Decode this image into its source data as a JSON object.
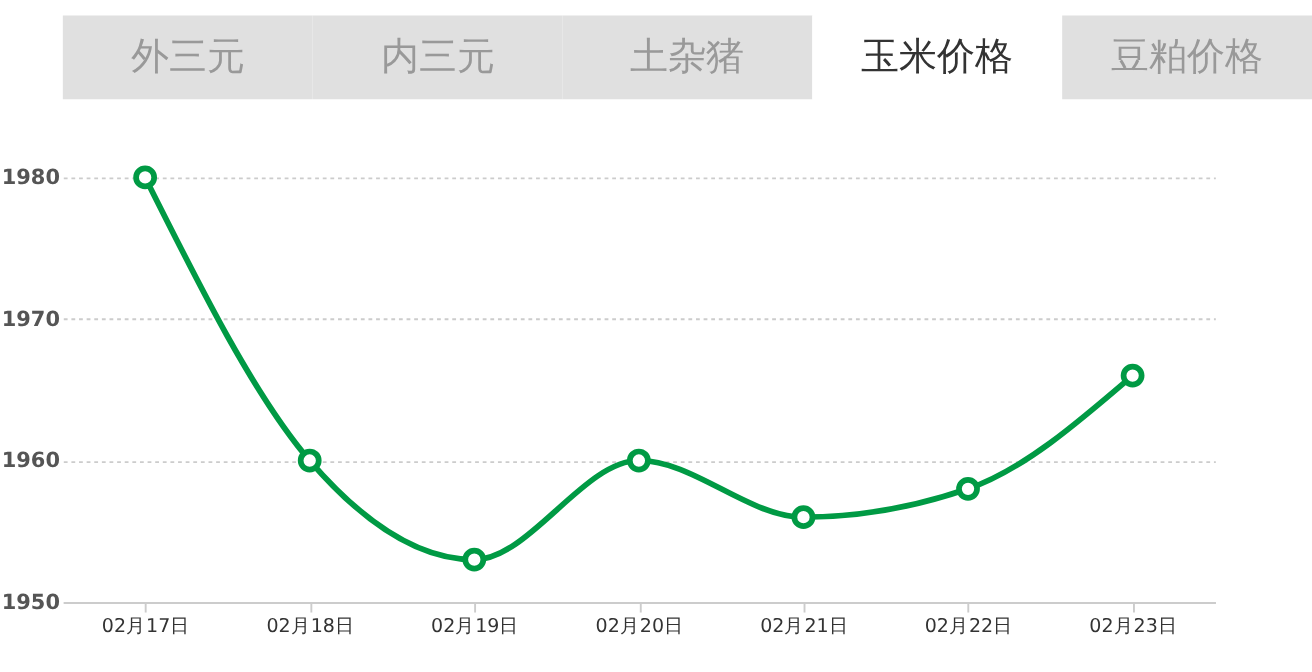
{
  "chart_data": {
    "type": "line",
    "annotations": [
      "外三元",
      "内三元",
      "土杂猪",
      "玉米价格",
      "豆粕价格"
    ],
    "categories": [
      "02月17日",
      "02月18日",
      "02月19日",
      "02月20日",
      "02月21日",
      "02月22日",
      "02月23日"
    ],
    "series": [
      {
        "color": "#009a44",
        "values": [
          1980,
          1960,
          1953,
          1960,
          1956,
          1958,
          1966
        ]
      }
    ],
    "ylim": [
      1950,
      1980
    ],
    "yticks": [
      1950,
      1960,
      1970,
      1980
    ],
    "grid": "y",
    "marker": "circle",
    "line_style": "solid"
  }
}
